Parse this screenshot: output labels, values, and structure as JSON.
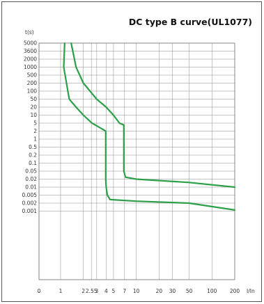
{
  "chart_data": {
    "type": "line",
    "title": "DC type B curve(UL1077)",
    "xlabel": "I/In",
    "ylabel": "t(s)",
    "x_scale": "log",
    "y_scale": "categorical (non-linear)",
    "grid": true,
    "line_color": "#2ca048",
    "x_ticks": [
      {
        "label": "0"
      },
      {
        "label": "1",
        "value": 1
      },
      {
        "label": "2",
        "value": 2
      },
      {
        "label": "2.55",
        "value": 2.55
      },
      {
        "label": "3",
        "value": 3
      },
      {
        "label": "4",
        "value": 4
      },
      {
        "label": "5",
        "value": 5
      },
      {
        "label": "7",
        "value": 7
      },
      {
        "label": "10",
        "value": 10
      },
      {
        "label": "20",
        "value": 20
      },
      {
        "label": "30",
        "value": 30
      },
      {
        "label": "50",
        "value": 50
      },
      {
        "label": "100",
        "value": 100
      },
      {
        "label": "200",
        "value": 200
      }
    ],
    "y_ticks": [
      "5000",
      "3600",
      "2000",
      "1000",
      "500",
      "200",
      "100",
      "50",
      "20",
      "10",
      "5",
      "2",
      "1",
      "0.5",
      "0.2",
      "0.1",
      "0.05",
      "0.02",
      "0.01",
      "0.005",
      "0.002",
      "0.001"
    ],
    "series": [
      {
        "points": [
          [
            1.13,
            5000
          ],
          [
            1.1,
            1000
          ],
          [
            1.3,
            50
          ],
          [
            1.6,
            20
          ],
          [
            2,
            10
          ],
          [
            2.6,
            5
          ],
          [
            3.3,
            3
          ],
          [
            3.95,
            2
          ],
          [
            3.95,
            0.02
          ],
          [
            4,
            0.01
          ],
          [
            4.15,
            0.005
          ],
          [
            4.5,
            0.003
          ],
          [
            10,
            0.0025
          ],
          [
            50,
            0.002
          ],
          [
            200,
            0.0011
          ]
        ]
      },
      {
        "points": [
          [
            1.38,
            5000
          ],
          [
            1.6,
            1000
          ],
          [
            2,
            200
          ],
          [
            3,
            50
          ],
          [
            4,
            20
          ],
          [
            5,
            10
          ],
          [
            6,
            5
          ],
          [
            6.85,
            4
          ],
          [
            6.85,
            0.05
          ],
          [
            7.2,
            0.025
          ],
          [
            10,
            0.02
          ],
          [
            50,
            0.015
          ],
          [
            200,
            0.01
          ]
        ]
      }
    ]
  }
}
